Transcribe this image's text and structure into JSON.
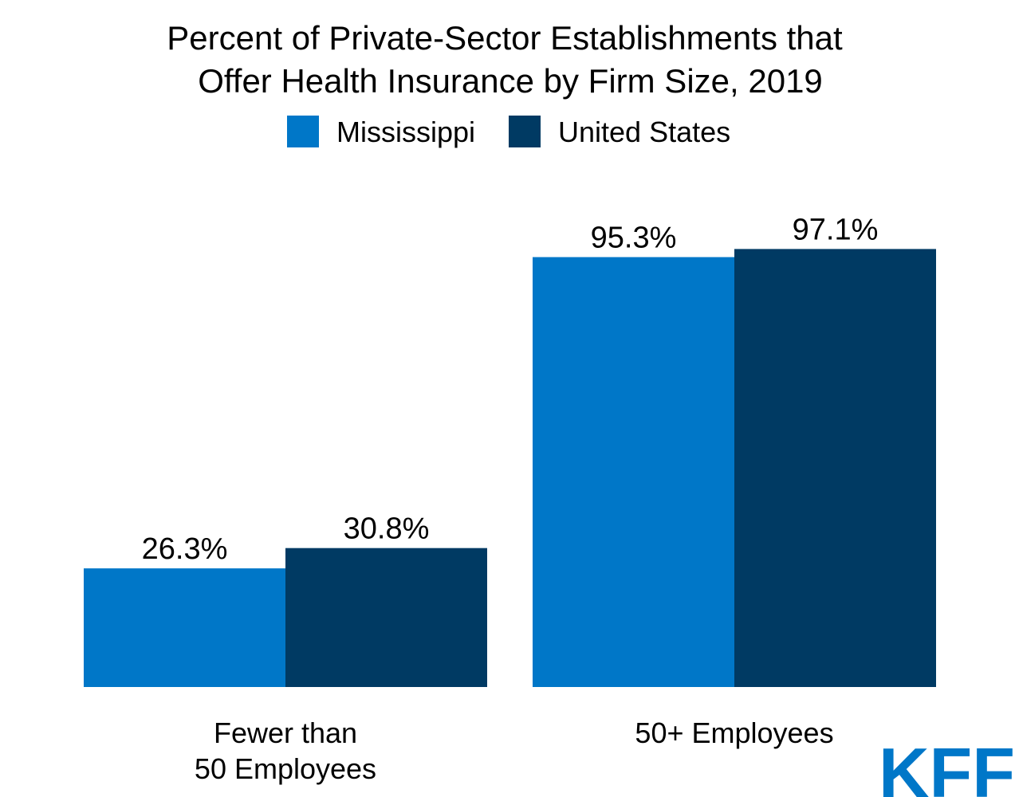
{
  "chart_data": {
    "type": "bar",
    "title_lines": [
      "Percent of Private-Sector Establishments that",
      "Offer Health Insurance by Firm Size, 2019"
    ],
    "categories": [
      [
        "Fewer than",
        "50 Employees"
      ],
      [
        "50+ Employees"
      ]
    ],
    "series": [
      {
        "name": "Mississippi",
        "values": [
          26.3,
          95.3
        ],
        "labels": [
          "26.3%",
          "95.3%"
        ],
        "color": "#0077c8"
      },
      {
        "name": "United States",
        "values": [
          30.8,
          97.1
        ],
        "labels": [
          "30.8%",
          "97.1%"
        ],
        "color": "#003a63"
      }
    ],
    "ylim": [
      0,
      100
    ],
    "grid": false,
    "legend_position": "top-center"
  },
  "logo": {
    "text": "KFF",
    "color": "#0077c8"
  }
}
